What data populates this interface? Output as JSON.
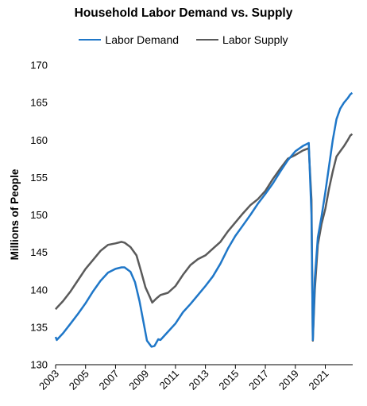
{
  "chart_data": {
    "type": "line",
    "title": "Household Labor Demand vs. Supply",
    "ylabel": "Millions of People",
    "xlabel": "",
    "ylim": [
      130,
      170
    ],
    "yticks": [
      130,
      135,
      140,
      145,
      150,
      155,
      160,
      165,
      170
    ],
    "xlim": [
      2003,
      2022.83
    ],
    "xticks": [
      2003,
      2005,
      2007,
      2009,
      2011,
      2013,
      2015,
      2017,
      2019,
      2021
    ],
    "grid": false,
    "legend_position": "top",
    "series": [
      {
        "name": "Labor Demand",
        "color": "#1f77c8",
        "x": [
          2003.0,
          2003.08,
          2003.5,
          2004.0,
          2004.5,
          2005.0,
          2005.5,
          2006.0,
          2006.5,
          2007.0,
          2007.4,
          2007.6,
          2008.0,
          2008.3,
          2008.6,
          2008.9,
          2009.1,
          2009.4,
          2009.6,
          2009.85,
          2010.0,
          2010.5,
          2011.0,
          2011.5,
          2012.0,
          2012.5,
          2013.0,
          2013.5,
          2014.0,
          2014.5,
          2015.0,
          2015.5,
          2016.0,
          2016.5,
          2017.0,
          2017.5,
          2018.0,
          2018.5,
          2019.0,
          2019.5,
          2019.9,
          2020.08,
          2020.17,
          2020.3,
          2020.5,
          2020.75,
          2021.0,
          2021.25,
          2021.5,
          2021.75,
          2022.0,
          2022.25,
          2022.5,
          2022.67,
          2022.8
        ],
        "values": [
          133.7,
          133.3,
          134.2,
          135.5,
          136.8,
          138.2,
          139.8,
          141.2,
          142.3,
          142.8,
          143.0,
          143.0,
          142.4,
          141.0,
          138.5,
          135.3,
          133.2,
          132.4,
          132.5,
          133.4,
          133.3,
          134.4,
          135.5,
          137.0,
          138.1,
          139.3,
          140.5,
          141.8,
          143.5,
          145.5,
          147.2,
          148.6,
          150.0,
          151.5,
          152.8,
          154.2,
          155.8,
          157.3,
          158.5,
          159.2,
          159.6,
          150.0,
          133.3,
          141.5,
          147.0,
          149.8,
          153.0,
          156.5,
          160.0,
          162.8,
          164.2,
          165.0,
          165.6,
          166.1,
          166.3
        ]
      },
      {
        "name": "Labor Supply",
        "color": "#5a5a5a",
        "x": [
          2003.0,
          2003.08,
          2003.5,
          2004.0,
          2004.5,
          2005.0,
          2005.5,
          2006.0,
          2006.5,
          2007.0,
          2007.4,
          2007.6,
          2008.0,
          2008.4,
          2008.7,
          2009.0,
          2009.3,
          2009.45,
          2009.7,
          2010.0,
          2010.5,
          2011.0,
          2011.5,
          2012.0,
          2012.5,
          2013.0,
          2013.5,
          2014.0,
          2014.5,
          2015.0,
          2015.5,
          2016.0,
          2016.5,
          2017.0,
          2017.5,
          2018.0,
          2018.5,
          2019.0,
          2019.5,
          2019.9,
          2020.08,
          2020.17,
          2020.3,
          2020.5,
          2020.75,
          2021.0,
          2021.25,
          2021.5,
          2021.75,
          2022.0,
          2022.25,
          2022.5,
          2022.67,
          2022.8
        ],
        "values": [
          137.4,
          137.6,
          138.5,
          139.8,
          141.3,
          142.8,
          144.0,
          145.2,
          146.0,
          146.2,
          146.4,
          146.3,
          145.7,
          144.6,
          142.5,
          140.3,
          139.0,
          138.3,
          138.8,
          139.3,
          139.6,
          140.5,
          142.0,
          143.3,
          144.1,
          144.6,
          145.5,
          146.4,
          147.8,
          149.0,
          150.2,
          151.3,
          152.1,
          153.2,
          154.8,
          156.2,
          157.5,
          158.0,
          158.6,
          158.9,
          152.0,
          133.2,
          140.0,
          146.0,
          148.8,
          150.8,
          153.5,
          155.8,
          157.8,
          158.5,
          159.2,
          160.0,
          160.6,
          160.8
        ]
      }
    ]
  }
}
